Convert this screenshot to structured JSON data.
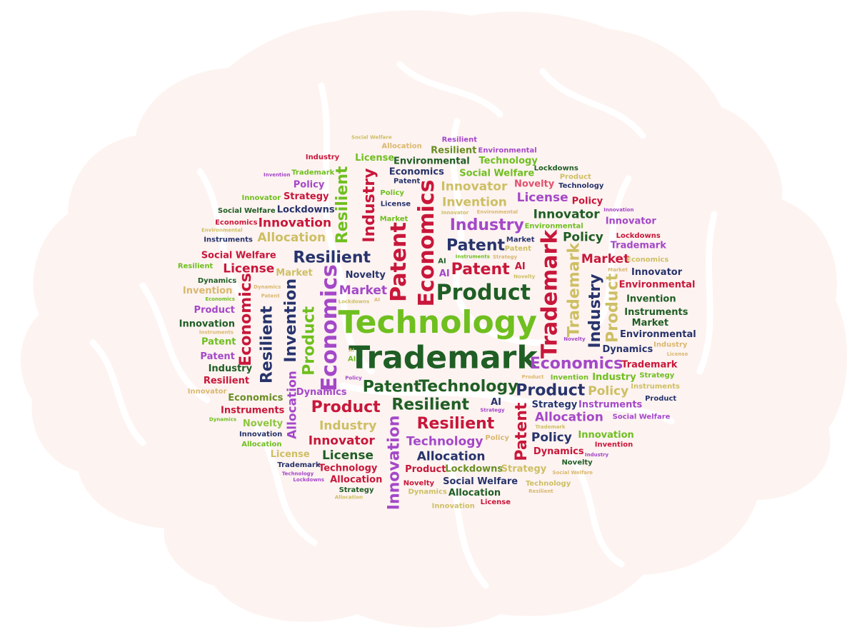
{
  "palette": {
    "green": "#6fbf1f",
    "darkgreen": "#1f5e24",
    "crimson": "#c8173a",
    "purple": "#a448c8",
    "navy": "#27336b",
    "khaki": "#cdbf63",
    "tan": "#d9b86e",
    "olive": "#6a8e24",
    "pink": "#e2506c",
    "lime": "#8ec63f"
  },
  "words": [
    {
      "text": "Technology",
      "color": "green",
      "size": 7
    },
    {
      "text": "Trademark",
      "color": "darkgreen",
      "size": 7
    },
    {
      "text": "Economics",
      "color": "purple",
      "size": 6,
      "rotate": -90
    },
    {
      "text": "Economics",
      "color": "crimson",
      "size": 6,
      "rotate": -90
    },
    {
      "text": "Patent",
      "color": "crimson",
      "size": 6,
      "rotate": -90
    },
    {
      "text": "Product",
      "color": "darkgreen",
      "size": 6
    },
    {
      "text": "Trademark",
      "color": "crimson",
      "size": 6,
      "rotate": -90
    },
    {
      "text": "Technology",
      "color": "darkgreen",
      "size": 5
    },
    {
      "text": "Patent",
      "color": "crimson",
      "size": 5
    },
    {
      "text": "Patent",
      "color": "darkgreen",
      "size": 5
    },
    {
      "text": "Patent",
      "color": "navy",
      "size": 5
    },
    {
      "text": "Resilient",
      "color": "darkgreen",
      "size": 5
    },
    {
      "text": "Resilient",
      "color": "navy",
      "size": 5
    },
    {
      "text": "Resilient",
      "color": "crimson",
      "size": 5
    },
    {
      "text": "Industry",
      "color": "purple",
      "size": 5
    },
    {
      "text": "Economics",
      "color": "purple",
      "size": 5
    },
    {
      "text": "Product",
      "color": "navy",
      "size": 5
    },
    {
      "text": "Product",
      "color": "crimson",
      "size": 5
    },
    {
      "text": "Product",
      "color": "green",
      "size": 5,
      "rotate": -90
    },
    {
      "text": "Technology",
      "color": "purple",
      "size": 4
    },
    {
      "text": "Trademark",
      "color": "khaki",
      "size": 5,
      "rotate": -90
    },
    {
      "text": "Invention",
      "color": "navy",
      "size": 5,
      "rotate": -90
    },
    {
      "text": "Industry",
      "color": "navy",
      "size": 5,
      "rotate": -90
    },
    {
      "text": "Resilient",
      "color": "navy",
      "size": 5,
      "rotate": -90
    },
    {
      "text": "Industry",
      "color": "crimson",
      "size": 5,
      "rotate": -90
    },
    {
      "text": "Patent",
      "color": "crimson",
      "size": 5,
      "rotate": -90
    },
    {
      "text": "Product",
      "color": "khaki",
      "size": 5,
      "rotate": -90
    },
    {
      "text": "Economics",
      "color": "crimson",
      "size": 5,
      "rotate": -90
    },
    {
      "text": "Innovation",
      "color": "purple",
      "size": 5,
      "rotate": -90
    },
    {
      "text": "Resilient",
      "color": "green",
      "size": 5,
      "rotate": -90
    },
    {
      "text": "Allocation",
      "color": "purple",
      "size": 4,
      "rotate": -90
    },
    {
      "text": "Industry",
      "color": "khaki",
      "size": 4
    },
    {
      "text": "Invention",
      "color": "khaki",
      "size": 4
    },
    {
      "text": "Allocation",
      "color": "khaki",
      "size": 4
    },
    {
      "text": "Allocation",
      "color": "purple",
      "size": 4
    },
    {
      "text": "Allocation",
      "color": "navy",
      "size": 4
    },
    {
      "text": "Innovation",
      "color": "crimson",
      "size": 4
    },
    {
      "text": "Innovator",
      "color": "crimson",
      "size": 4
    },
    {
      "text": "Innovator",
      "color": "khaki",
      "size": 4
    },
    {
      "text": "Innovator",
      "color": "darkgreen",
      "size": 4
    },
    {
      "text": "Policy",
      "color": "navy",
      "size": 4
    },
    {
      "text": "Policy",
      "color": "darkgreen",
      "size": 4
    },
    {
      "text": "Policy",
      "color": "khaki",
      "size": 4
    },
    {
      "text": "Market",
      "color": "crimson",
      "size": 4
    },
    {
      "text": "Market",
      "color": "purple",
      "size": 4
    },
    {
      "text": "License",
      "color": "crimson",
      "size": 4
    },
    {
      "text": "License",
      "color": "purple",
      "size": 4
    },
    {
      "text": "License",
      "color": "darkgreen",
      "size": 4
    },
    {
      "text": "Lockdowns",
      "color": "navy",
      "size": 3
    },
    {
      "text": "Lockdowns",
      "color": "olive",
      "size": 3
    },
    {
      "text": "Economics",
      "color": "navy",
      "size": 3
    },
    {
      "text": "Economics",
      "color": "olive",
      "size": 3
    },
    {
      "text": "Social Welfare",
      "color": "crimson",
      "size": 3
    },
    {
      "text": "Social Welfare",
      "color": "navy",
      "size": 3
    },
    {
      "text": "Social Welfare",
      "color": "green",
      "size": 3
    },
    {
      "text": "Environmental",
      "color": "darkgreen",
      "size": 3
    },
    {
      "text": "Environmental",
      "color": "crimson",
      "size": 3
    },
    {
      "text": "Environmental",
      "color": "navy",
      "size": 3
    },
    {
      "text": "Instruments",
      "color": "purple",
      "size": 3
    },
    {
      "text": "Instruments",
      "color": "crimson",
      "size": 3
    },
    {
      "text": "Instruments",
      "color": "darkgreen",
      "size": 3
    },
    {
      "text": "Dynamics",
      "color": "purple",
      "size": 3
    },
    {
      "text": "Dynamics",
      "color": "crimson",
      "size": 3
    },
    {
      "text": "Dynamics",
      "color": "navy",
      "size": 3
    },
    {
      "text": "Strategy",
      "color": "khaki",
      "size": 3
    },
    {
      "text": "Strategy",
      "color": "navy",
      "size": 3
    },
    {
      "text": "Strategy",
      "color": "crimson",
      "size": 3
    },
    {
      "text": "Novelty",
      "color": "pink",
      "size": 3
    },
    {
      "text": "Novelty",
      "color": "navy",
      "size": 3
    },
    {
      "text": "Novelty",
      "color": "lime",
      "size": 3
    },
    {
      "text": "AI",
      "color": "crimson",
      "size": 3
    },
    {
      "text": "AI",
      "color": "navy",
      "size": 3
    },
    {
      "text": "AI",
      "color": "purple",
      "size": 3
    },
    {
      "text": "Industry",
      "color": "darkgreen",
      "size": 3
    },
    {
      "text": "Industry",
      "color": "green",
      "size": 3
    },
    {
      "text": "Technology",
      "color": "crimson",
      "size": 3
    },
    {
      "text": "Technology",
      "color": "green",
      "size": 3
    },
    {
      "text": "Innovation",
      "color": "green",
      "size": 3
    },
    {
      "text": "Innovation",
      "color": "darkgreen",
      "size": 3
    },
    {
      "text": "Invention",
      "color": "darkgreen",
      "size": 3
    },
    {
      "text": "Invention",
      "color": "tan",
      "size": 3
    },
    {
      "text": "Trademark",
      "color": "crimson",
      "size": 3
    },
    {
      "text": "Trademark",
      "color": "purple",
      "size": 3
    },
    {
      "text": "Allocation",
      "color": "crimson",
      "size": 3
    },
    {
      "text": "Allocation",
      "color": "darkgreen",
      "size": 3
    },
    {
      "text": "Market",
      "color": "darkgreen",
      "size": 3
    },
    {
      "text": "Market",
      "color": "khaki",
      "size": 3
    },
    {
      "text": "Patent",
      "color": "purple",
      "size": 3
    },
    {
      "text": "Patent",
      "color": "green",
      "size": 3
    },
    {
      "text": "Product",
      "color": "crimson",
      "size": 3
    },
    {
      "text": "Product",
      "color": "purple",
      "size": 3
    },
    {
      "text": "Resilient",
      "color": "olive",
      "size": 3
    },
    {
      "text": "Resilient",
      "color": "crimson",
      "size": 3
    },
    {
      "text": "License",
      "color": "khaki",
      "size": 3
    },
    {
      "text": "License",
      "color": "green",
      "size": 3
    },
    {
      "text": "Policy",
      "color": "purple",
      "size": 3
    },
    {
      "text": "Policy",
      "color": "crimson",
      "size": 3
    },
    {
      "text": "Innovator",
      "color": "navy",
      "size": 3
    },
    {
      "text": "Innovator",
      "color": "purple",
      "size": 3
    },
    {
      "text": "Lockdowns",
      "color": "crimson",
      "size": 2
    },
    {
      "text": "Lockdowns",
      "color": "darkgreen",
      "size": 2
    },
    {
      "text": "Environmental",
      "color": "green",
      "size": 2
    },
    {
      "text": "Environmental",
      "color": "purple",
      "size": 2
    },
    {
      "text": "Instruments",
      "color": "navy",
      "size": 2
    },
    {
      "text": "Instruments",
      "color": "khaki",
      "size": 2
    },
    {
      "text": "Dynamics",
      "color": "darkgreen",
      "size": 2
    },
    {
      "text": "Dynamics",
      "color": "khaki",
      "size": 2
    },
    {
      "text": "Social Welfare",
      "color": "darkgreen",
      "size": 2
    },
    {
      "text": "Social Welfare",
      "color": "purple",
      "size": 2
    },
    {
      "text": "Strategy",
      "color": "darkgreen",
      "size": 2
    },
    {
      "text": "Strategy",
      "color": "green",
      "size": 2
    },
    {
      "text": "Novelty",
      "color": "crimson",
      "size": 2
    },
    {
      "text": "Novelty",
      "color": "darkgreen",
      "size": 2
    },
    {
      "text": "AI",
      "color": "darkgreen",
      "size": 2
    },
    {
      "text": "AI",
      "color": "green",
      "size": 2
    },
    {
      "text": "Economics",
      "color": "crimson",
      "size": 2
    },
    {
      "text": "Economics",
      "color": "khaki",
      "size": 2
    },
    {
      "text": "Technology",
      "color": "navy",
      "size": 2
    },
    {
      "text": "Technology",
      "color": "khaki",
      "size": 2
    },
    {
      "text": "Innovation",
      "color": "navy",
      "size": 2
    },
    {
      "text": "Innovation",
      "color": "khaki",
      "size": 2
    },
    {
      "text": "Invention",
      "color": "crimson",
      "size": 2
    },
    {
      "text": "Invention",
      "color": "green",
      "size": 2
    },
    {
      "text": "Trademark",
      "color": "navy",
      "size": 2
    },
    {
      "text": "Trademark",
      "color": "green",
      "size": 2
    },
    {
      "text": "Allocation",
      "color": "green",
      "size": 2
    },
    {
      "text": "Allocation",
      "color": "tan",
      "size": 2
    },
    {
      "text": "Market",
      "color": "navy",
      "size": 2
    },
    {
      "text": "Market",
      "color": "green",
      "size": 2
    },
    {
      "text": "Industry",
      "color": "crimson",
      "size": 2
    },
    {
      "text": "Industry",
      "color": "tan",
      "size": 2
    },
    {
      "text": "Patent",
      "color": "navy",
      "size": 2
    },
    {
      "text": "Patent",
      "color": "khaki",
      "size": 2
    },
    {
      "text": "Product",
      "color": "navy",
      "size": 2
    },
    {
      "text": "Product",
      "color": "khaki",
      "size": 2
    },
    {
      "text": "Resilient",
      "color": "purple",
      "size": 2
    },
    {
      "text": "Resilient",
      "color": "green",
      "size": 2
    },
    {
      "text": "License",
      "color": "navy",
      "size": 2
    },
    {
      "text": "License",
      "color": "crimson",
      "size": 2
    },
    {
      "text": "Policy",
      "color": "green",
      "size": 2
    },
    {
      "text": "Policy",
      "color": "tan",
      "size": 2
    },
    {
      "text": "Innovator",
      "color": "green",
      "size": 2
    },
    {
      "text": "Innovator",
      "color": "tan",
      "size": 2
    },
    {
      "text": "Lockdowns",
      "color": "khaki",
      "size": 1
    },
    {
      "text": "Lockdowns",
      "color": "purple",
      "size": 1
    },
    {
      "text": "Environmental",
      "color": "khaki",
      "size": 1
    },
    {
      "text": "Environmental",
      "color": "tan",
      "size": 1
    },
    {
      "text": "Instruments",
      "color": "green",
      "size": 1
    },
    {
      "text": "Instruments",
      "color": "tan",
      "size": 1
    },
    {
      "text": "Dynamics",
      "color": "green",
      "size": 1
    },
    {
      "text": "Dynamics",
      "color": "tan",
      "size": 1
    },
    {
      "text": "Social Welfare",
      "color": "khaki",
      "size": 1
    },
    {
      "text": "Social Welfare",
      "color": "tan",
      "size": 1
    },
    {
      "text": "Strategy",
      "color": "purple",
      "size": 1
    },
    {
      "text": "Strategy",
      "color": "tan",
      "size": 1
    },
    {
      "text": "Novelty",
      "color": "khaki",
      "size": 1
    },
    {
      "text": "Novelty",
      "color": "purple",
      "size": 1
    },
    {
      "text": "AI",
      "color": "khaki",
      "size": 1
    },
    {
      "text": "AI",
      "color": "tan",
      "size": 1
    },
    {
      "text": "Economics",
      "color": "green",
      "size": 1
    },
    {
      "text": "Technology",
      "color": "purple",
      "size": 1
    },
    {
      "text": "Innovation",
      "color": "purple",
      "size": 1
    },
    {
      "text": "Invention",
      "color": "purple",
      "size": 1
    },
    {
      "text": "Trademark",
      "color": "khaki",
      "size": 1
    },
    {
      "text": "Allocation",
      "color": "khaki",
      "size": 1
    },
    {
      "text": "Market",
      "color": "tan",
      "size": 1
    },
    {
      "text": "Industry",
      "color": "purple",
      "size": 1
    },
    {
      "text": "Patent",
      "color": "tan",
      "size": 1
    },
    {
      "text": "Product",
      "color": "tan",
      "size": 1
    },
    {
      "text": "Resilient",
      "color": "tan",
      "size": 1
    },
    {
      "text": "License",
      "color": "tan",
      "size": 1
    },
    {
      "text": "Policy",
      "color": "purple",
      "size": 1
    },
    {
      "text": "Innovator",
      "color": "khaki",
      "size": 1
    }
  ]
}
